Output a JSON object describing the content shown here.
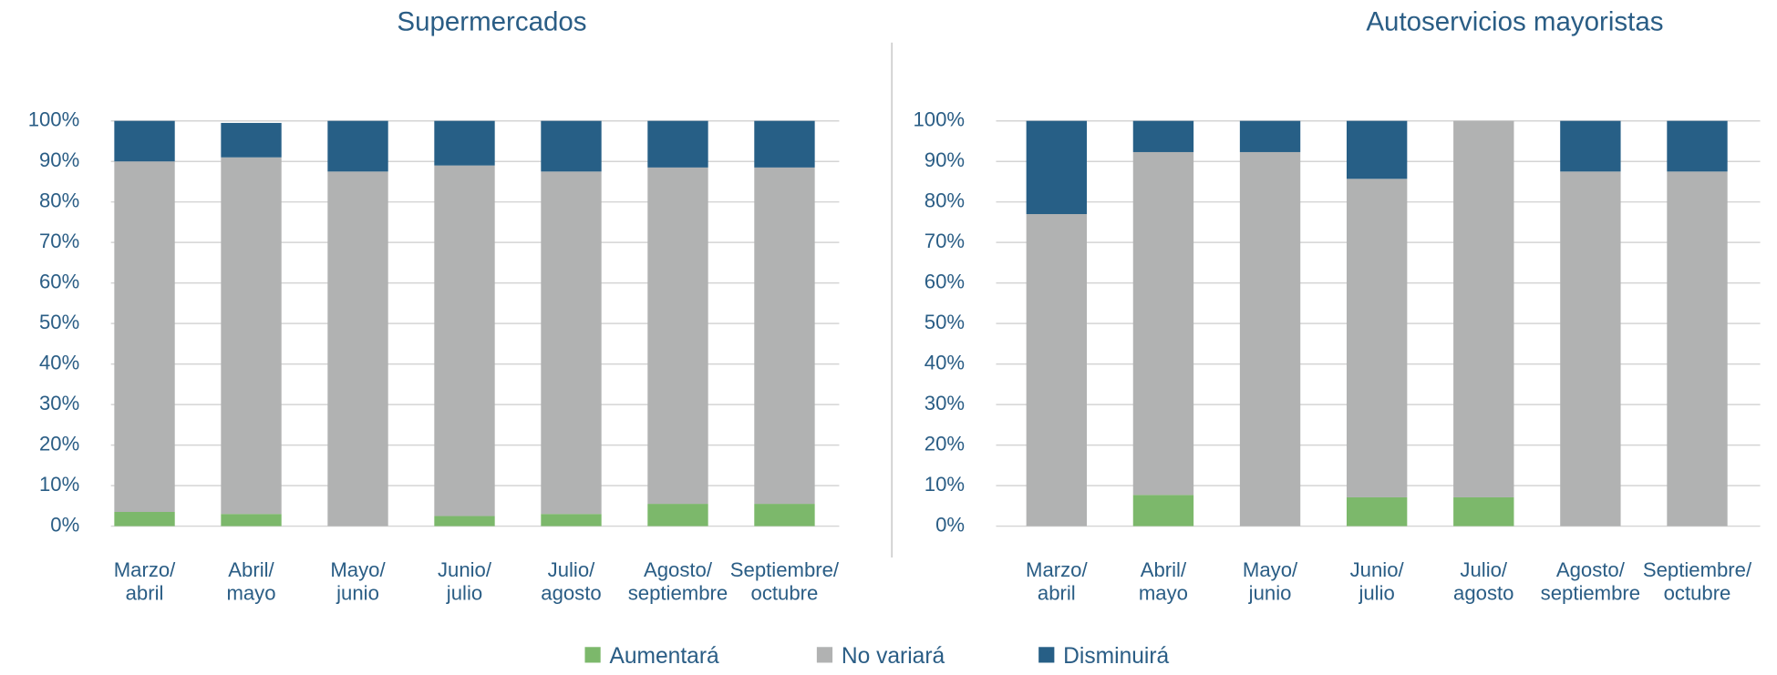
{
  "chart_data": [
    {
      "type": "stacked_bar",
      "title": "Supermercados",
      "categories": [
        "Marzo/ abril",
        "Abril/ mayo",
        "Mayo/ junio",
        "Junio/ julio",
        "Julio/ agosto",
        "Agosto/ septiembre",
        "Septiembre/ octubre"
      ],
      "series": [
        {
          "name": "Aumentará",
          "color": "#7cb86b",
          "values": [
            3.5,
            3,
            0,
            2.5,
            3,
            5.5,
            5.5
          ]
        },
        {
          "name": "No variará",
          "color": "#b1b2b2",
          "values": [
            86.5,
            88,
            87.5,
            86.5,
            84.5,
            83,
            83
          ]
        },
        {
          "name": "Disminuirá",
          "color": "#275f86",
          "values": [
            10,
            8.5,
            12.5,
            11,
            12.5,
            11.5,
            11.5
          ]
        }
      ],
      "ylim": [
        0,
        100
      ],
      "yticks": [
        {
          "value": 0,
          "label": "0%"
        },
        {
          "value": 10,
          "label": "10%"
        },
        {
          "value": 20,
          "label": "20%"
        },
        {
          "value": 30,
          "label": "30%"
        },
        {
          "value": 40,
          "label": "40%"
        },
        {
          "value": 50,
          "label": "50%"
        },
        {
          "value": 60,
          "label": "60%"
        },
        {
          "value": 70,
          "label": "70%"
        },
        {
          "value": 80,
          "label": "80%"
        },
        {
          "value": 90,
          "label": "90%"
        },
        {
          "value": 100,
          "label": "100%"
        }
      ],
      "grid": true
    },
    {
      "type": "stacked_bar",
      "title": "Autoservicios mayoristas",
      "categories": [
        "Marzo/ abril",
        "Abril/ mayo",
        "Mayo/ junio",
        "Junio/ julio",
        "Julio/ agosto",
        "Agosto/ septiembre",
        "Septiembre/ octubre"
      ],
      "series": [
        {
          "name": "Aumentará",
          "color": "#7cb86b",
          "values": [
            0,
            7.7,
            0,
            7.1,
            7.1,
            0,
            0
          ]
        },
        {
          "name": "No variará",
          "color": "#b1b2b2",
          "values": [
            77,
            84.6,
            92.3,
            78.6,
            92.9,
            87.5,
            87.5
          ]
        },
        {
          "name": "Disminuirá",
          "color": "#275f86",
          "values": [
            23,
            7.7,
            7.7,
            14.3,
            0,
            12.5,
            12.5
          ]
        }
      ],
      "ylim": [
        0,
        100
      ],
      "yticks": [
        {
          "value": 0,
          "label": "0%"
        },
        {
          "value": 10,
          "label": "10%"
        },
        {
          "value": 20,
          "label": "20%"
        },
        {
          "value": 30,
          "label": "30%"
        },
        {
          "value": 40,
          "label": "40%"
        },
        {
          "value": 50,
          "label": "50%"
        },
        {
          "value": 60,
          "label": "60%"
        },
        {
          "value": 70,
          "label": "70%"
        },
        {
          "value": 80,
          "label": "80%"
        },
        {
          "value": 90,
          "label": "90%"
        },
        {
          "value": 100,
          "label": "100%"
        }
      ],
      "grid": true
    }
  ]
}
